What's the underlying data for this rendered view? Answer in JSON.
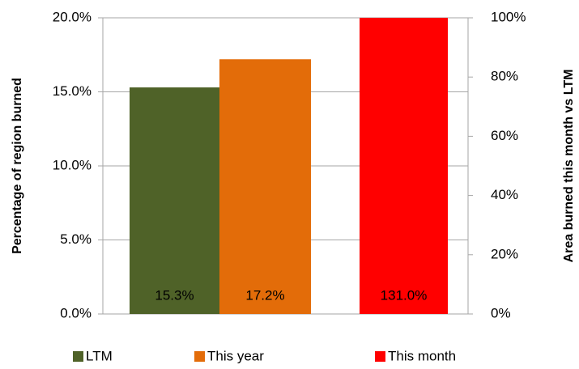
{
  "chart_data": {
    "type": "bar",
    "y_label": "Percentage of region burned",
    "y2_label": "Area burned this month vs LTM",
    "ylim": [
      0,
      20
    ],
    "yticks": [
      {
        "value": 0,
        "label": "0.0%"
      },
      {
        "value": 5,
        "label": "5.0%"
      },
      {
        "value": 10,
        "label": "10.0%"
      },
      {
        "value": 15,
        "label": "15.0%"
      },
      {
        "value": 20,
        "label": "20.0%"
      }
    ],
    "y2lim": [
      0,
      100
    ],
    "y2ticks": [
      {
        "value": 0,
        "label": "0%"
      },
      {
        "value": 20,
        "label": "20%"
      },
      {
        "value": 40,
        "label": "40%"
      },
      {
        "value": 60,
        "label": "60%"
      },
      {
        "value": 80,
        "label": "80%"
      },
      {
        "value": 100,
        "label": "100%"
      }
    ],
    "grid": true,
    "legend": "bottom",
    "series": [
      {
        "name": "LTM",
        "color": "#4f6228",
        "values": [
          15.3
        ],
        "value_labels": [
          "15.3%"
        ]
      },
      {
        "name": "This year",
        "color": "#e36c09",
        "values": [
          17.2
        ],
        "value_labels": [
          "17.2%"
        ]
      },
      {
        "name": "This month",
        "color": "#ff0000",
        "values": [
          131.0
        ],
        "value_labels": [
          "131.0%"
        ],
        "axis": "y2"
      }
    ]
  }
}
